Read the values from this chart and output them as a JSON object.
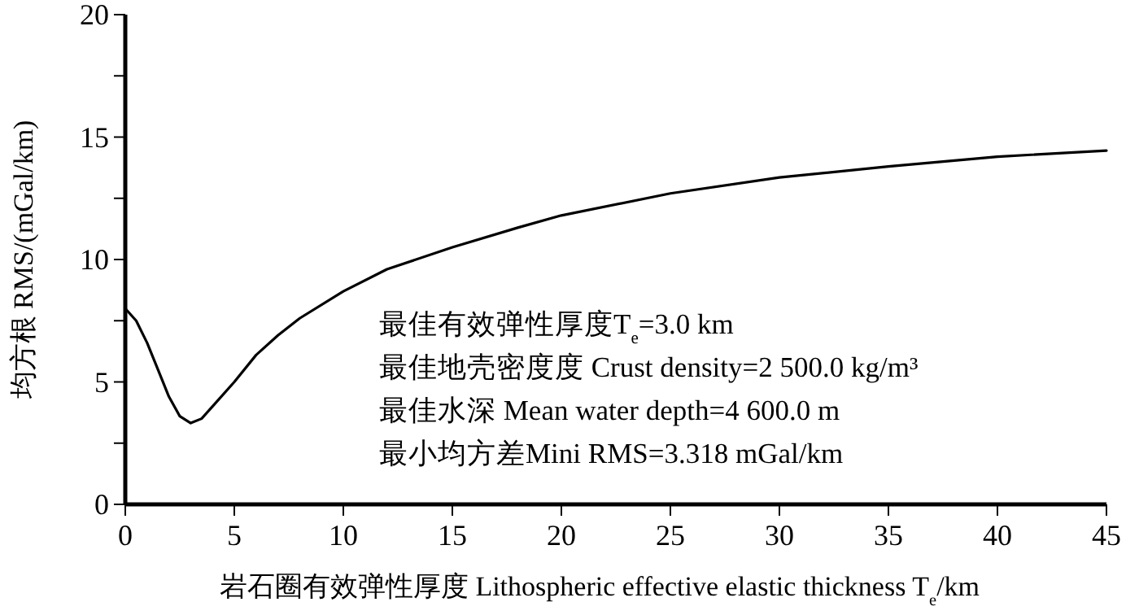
{
  "chart_data": {
    "type": "line",
    "xlabel": "岩石圈有效弹性厚度 Lithospheric effective elastic thickness T$_{e}$/km",
    "ylabel": "均方根 RMS/(mGal/km)",
    "x": [
      0,
      0.5,
      1,
      1.5,
      2,
      2.5,
      3,
      3.5,
      4,
      5,
      6,
      7,
      8,
      10,
      12,
      15,
      18,
      20,
      25,
      30,
      35,
      40,
      45
    ],
    "series": [
      {
        "color": "#000000",
        "values": [
          8.0,
          7.5,
          6.6,
          5.5,
          4.4,
          3.6,
          3.32,
          3.5,
          4.0,
          5.0,
          6.1,
          6.9,
          7.6,
          8.7,
          9.6,
          10.5,
          11.3,
          11.8,
          12.7,
          13.35,
          13.8,
          14.2,
          14.45
        ]
      }
    ],
    "xlim": [
      0,
      45
    ],
    "xticks": [
      0,
      5,
      10,
      15,
      20,
      25,
      30,
      35,
      40,
      45
    ],
    "ylim": [
      0,
      20
    ],
    "yticks": [
      0,
      {
        "value": 2.5,
        "label": null
      },
      5,
      {
        "value": 7.5,
        "label": null
      },
      10,
      {
        "value": 12.5,
        "label": null
      },
      15,
      {
        "value": 17.5,
        "label": null
      },
      20
    ],
    "annotations": [
      "最佳有效弹性厚度T$_{e}$=3.0 km",
      "最佳地壳密度度 Crust density=2 500.0 kg/m³",
      "最佳水深 Mean water depth=4 600.0 m",
      "最小均方差Mini RMS=3.318 mGal/km"
    ],
    "grid": false,
    "marker": "none",
    "line_style": "solid"
  }
}
